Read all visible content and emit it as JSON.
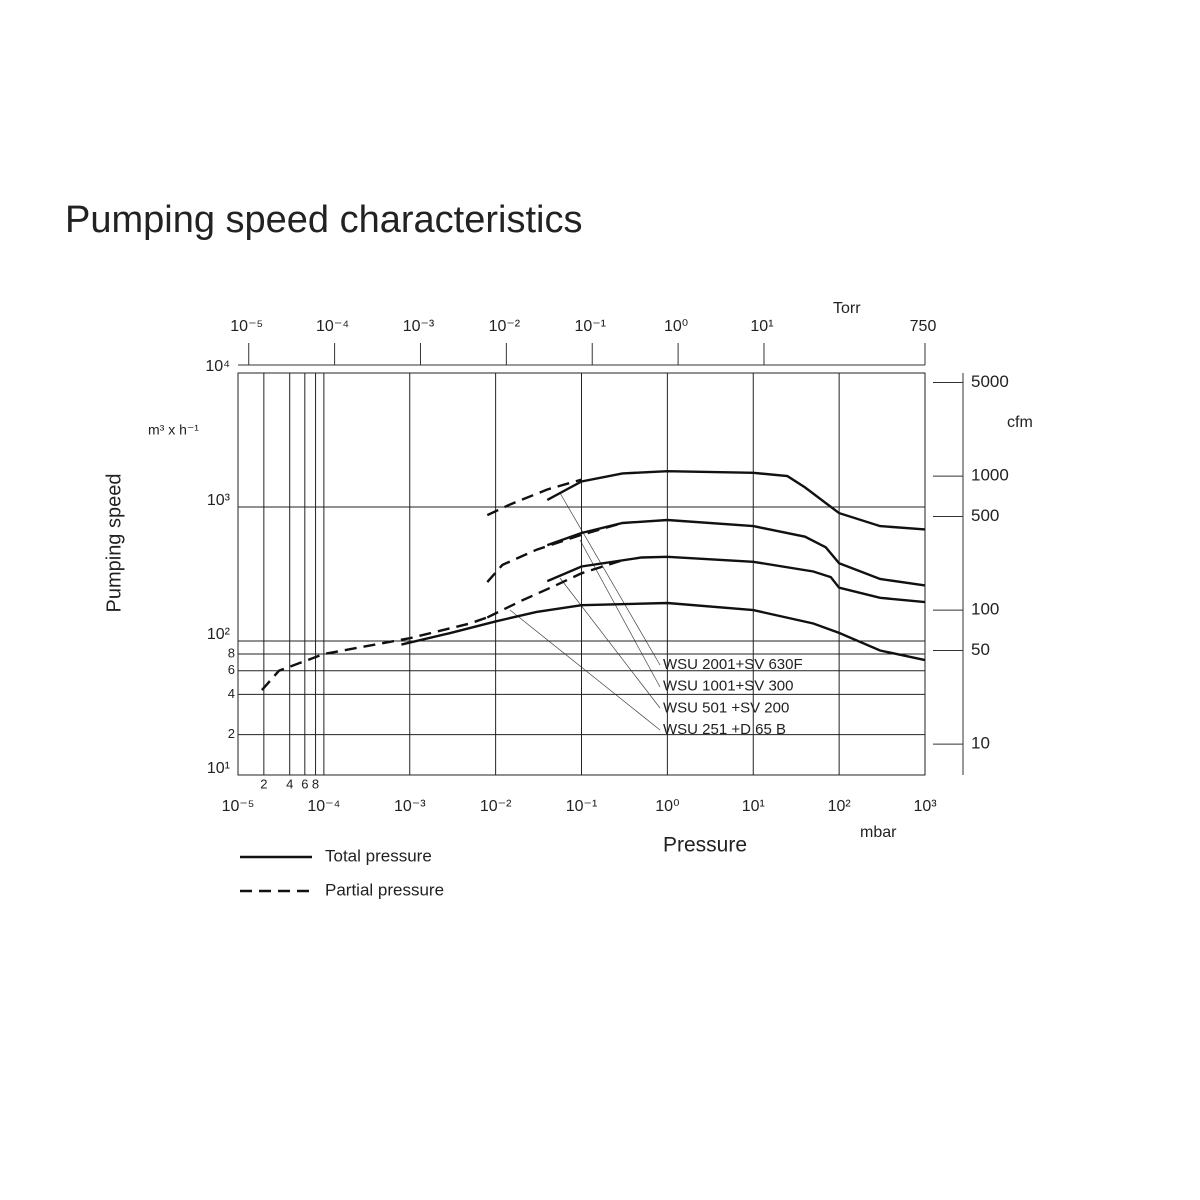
{
  "title": "Pumping speed characteristics",
  "chart_data": {
    "type": "line",
    "xlabel": "Pressure",
    "xunit": "mbar",
    "x2unit": "Torr",
    "ylabel": "Pumping speed",
    "yunit": "m³ x h⁻¹",
    "y2unit": "cfm",
    "xscale": "log",
    "yscale": "log",
    "grid": true,
    "xlim": [
      1e-05,
      1000
    ],
    "xticks": [
      {
        "value": 1e-05,
        "label": "10⁻⁵"
      },
      {
        "value": 0.0001,
        "label": "10⁻⁴"
      },
      {
        "value": 0.001,
        "label": "10⁻³"
      },
      {
        "value": 0.01,
        "label": "10⁻²"
      },
      {
        "value": 0.1,
        "label": "10⁻¹"
      },
      {
        "value": 1,
        "label": "10⁰"
      },
      {
        "value": 10,
        "label": "10¹"
      },
      {
        "value": 100,
        "label": "10²"
      },
      {
        "value": 1000,
        "label": "10³"
      }
    ],
    "xminorticks": [
      {
        "value": 2e-05,
        "label": "2"
      },
      {
        "value": 4e-05,
        "label": "4"
      },
      {
        "value": 6e-05,
        "label": "6"
      },
      {
        "value": 8e-05,
        "label": "8"
      }
    ],
    "x2lim": [
      7.5e-06,
      750
    ],
    "x2ticks": [
      {
        "value": 1e-05,
        "label": "10⁻⁵"
      },
      {
        "value": 0.0001,
        "label": "10⁻⁴"
      },
      {
        "value": 0.001,
        "label": "10⁻³"
      },
      {
        "value": 0.01,
        "label": "10⁻²"
      },
      {
        "value": 0.1,
        "label": "10⁻¹"
      },
      {
        "value": 1,
        "label": "10⁰"
      },
      {
        "value": 10,
        "label": "10¹"
      },
      750
    ],
    "ylim": [
      10,
      10000
    ],
    "yticks": [
      {
        "value": 10,
        "label": "10¹"
      },
      {
        "value": 100,
        "label": "10²"
      },
      {
        "value": 1000,
        "label": "10³"
      },
      {
        "value": 10000,
        "label": "10⁴"
      }
    ],
    "yminorticks": [
      {
        "value": 20,
        "label": "2"
      },
      {
        "value": 40,
        "label": "4"
      },
      {
        "value": 60,
        "label": "6"
      },
      {
        "value": 80,
        "label": "8"
      }
    ],
    "y2lim": [
      5.886,
      5886
    ],
    "y2ticks": [
      10,
      50,
      100,
      500,
      1000,
      5000
    ],
    "color": "#111111",
    "legend": [
      {
        "label": "Total pressure",
        "dash": "solid"
      },
      {
        "label": "Partial pressure",
        "dash": "dashed"
      }
    ],
    "series": [
      {
        "name": "WSU 2001+SV 630F",
        "total": {
          "x": [
            0.04,
            0.1,
            0.3,
            1,
            10,
            25,
            40,
            100,
            300,
            1000
          ],
          "values": [
            1130,
            1550,
            1780,
            1850,
            1800,
            1700,
            1400,
            900,
            720,
            680
          ]
        },
        "partial": {
          "x": [
            0.008,
            0.015,
            0.04,
            0.1
          ],
          "values": [
            870,
            1050,
            1350,
            1600
          ]
        }
      },
      {
        "name": "WSU 1001+SV 300",
        "total": {
          "x": [
            0.04,
            0.1,
            0.3,
            1,
            10,
            40,
            70,
            100,
            300,
            1000
          ],
          "values": [
            520,
            640,
            760,
            800,
            720,
            600,
            500,
            380,
            290,
            260
          ]
        },
        "partial": {
          "x": [
            0.008,
            0.012,
            0.03,
            0.1,
            0.3
          ],
          "values": [
            275,
            370,
            480,
            620,
            760
          ]
        }
      },
      {
        "name": "WSU 501  +SV 200",
        "total": {
          "x": [
            0.04,
            0.1,
            0.5,
            1,
            10,
            50,
            80,
            100,
            300,
            1000
          ],
          "values": [
            280,
            360,
            420,
            425,
            390,
            330,
            300,
            250,
            210,
            195
          ]
        },
        "partial": {
          "x": [
            0.008,
            0.02,
            0.05,
            0.1,
            0.3
          ],
          "values": [
            150,
            200,
            260,
            320,
            400
          ]
        }
      },
      {
        "name": "WSU 251  +D 65 B",
        "total": {
          "x": [
            0.0008,
            0.003,
            0.01,
            0.03,
            0.1,
            1,
            10,
            50,
            100,
            300,
            1000
          ],
          "values": [
            94,
            115,
            140,
            165,
            185,
            192,
            170,
            135,
            115,
            85,
            72
          ]
        },
        "partial": {
          "x": [
            1.9e-05,
            3e-05,
            0.0001,
            0.001,
            0.005,
            0.008
          ],
          "values": [
            43,
            60,
            80,
            105,
            135,
            150
          ]
        }
      }
    ]
  }
}
